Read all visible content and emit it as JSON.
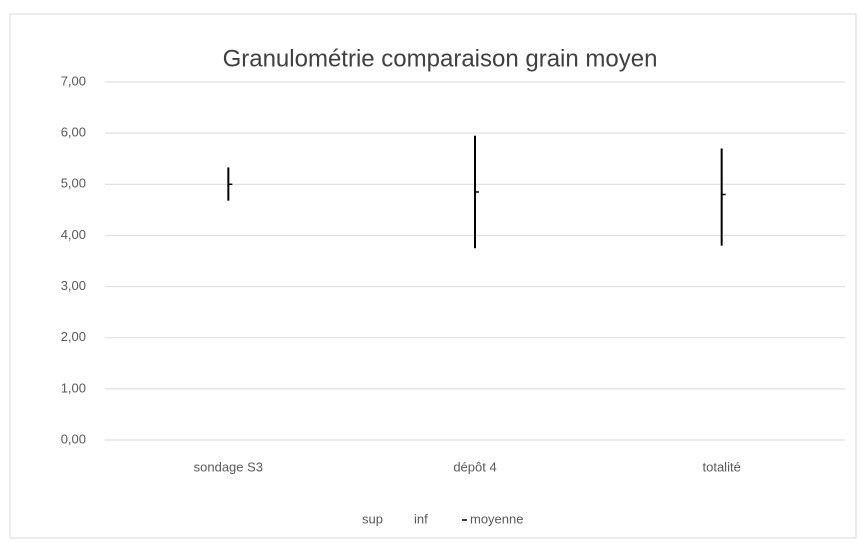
{
  "chart_data": {
    "type": "hilo",
    "title": "Granulométrie comparaison grain moyen",
    "categories": [
      "sondage S3",
      "dépôt 4",
      "totalité"
    ],
    "series": [
      {
        "name": "sup",
        "color": "#000000",
        "values": [
          5.33,
          5.95,
          5.7
        ]
      },
      {
        "name": "inf",
        "color": "#000000",
        "values": [
          4.68,
          3.75,
          3.8
        ]
      },
      {
        "name": "moyenne",
        "color": "#000000",
        "values": [
          5.0,
          4.85,
          4.8
        ]
      }
    ],
    "ylim": [
      0,
      7
    ],
    "yticks": [
      {
        "value": 0,
        "label": "0,00"
      },
      {
        "value": 1,
        "label": "1,00"
      },
      {
        "value": 2,
        "label": "2,00"
      },
      {
        "value": 3,
        "label": "3,00"
      },
      {
        "value": 4,
        "label": "4,00"
      },
      {
        "value": 5,
        "label": "5,00"
      },
      {
        "value": 6,
        "label": "6,00"
      },
      {
        "value": 7,
        "label": "7,00"
      }
    ],
    "grid": true,
    "legend": "bottom"
  }
}
